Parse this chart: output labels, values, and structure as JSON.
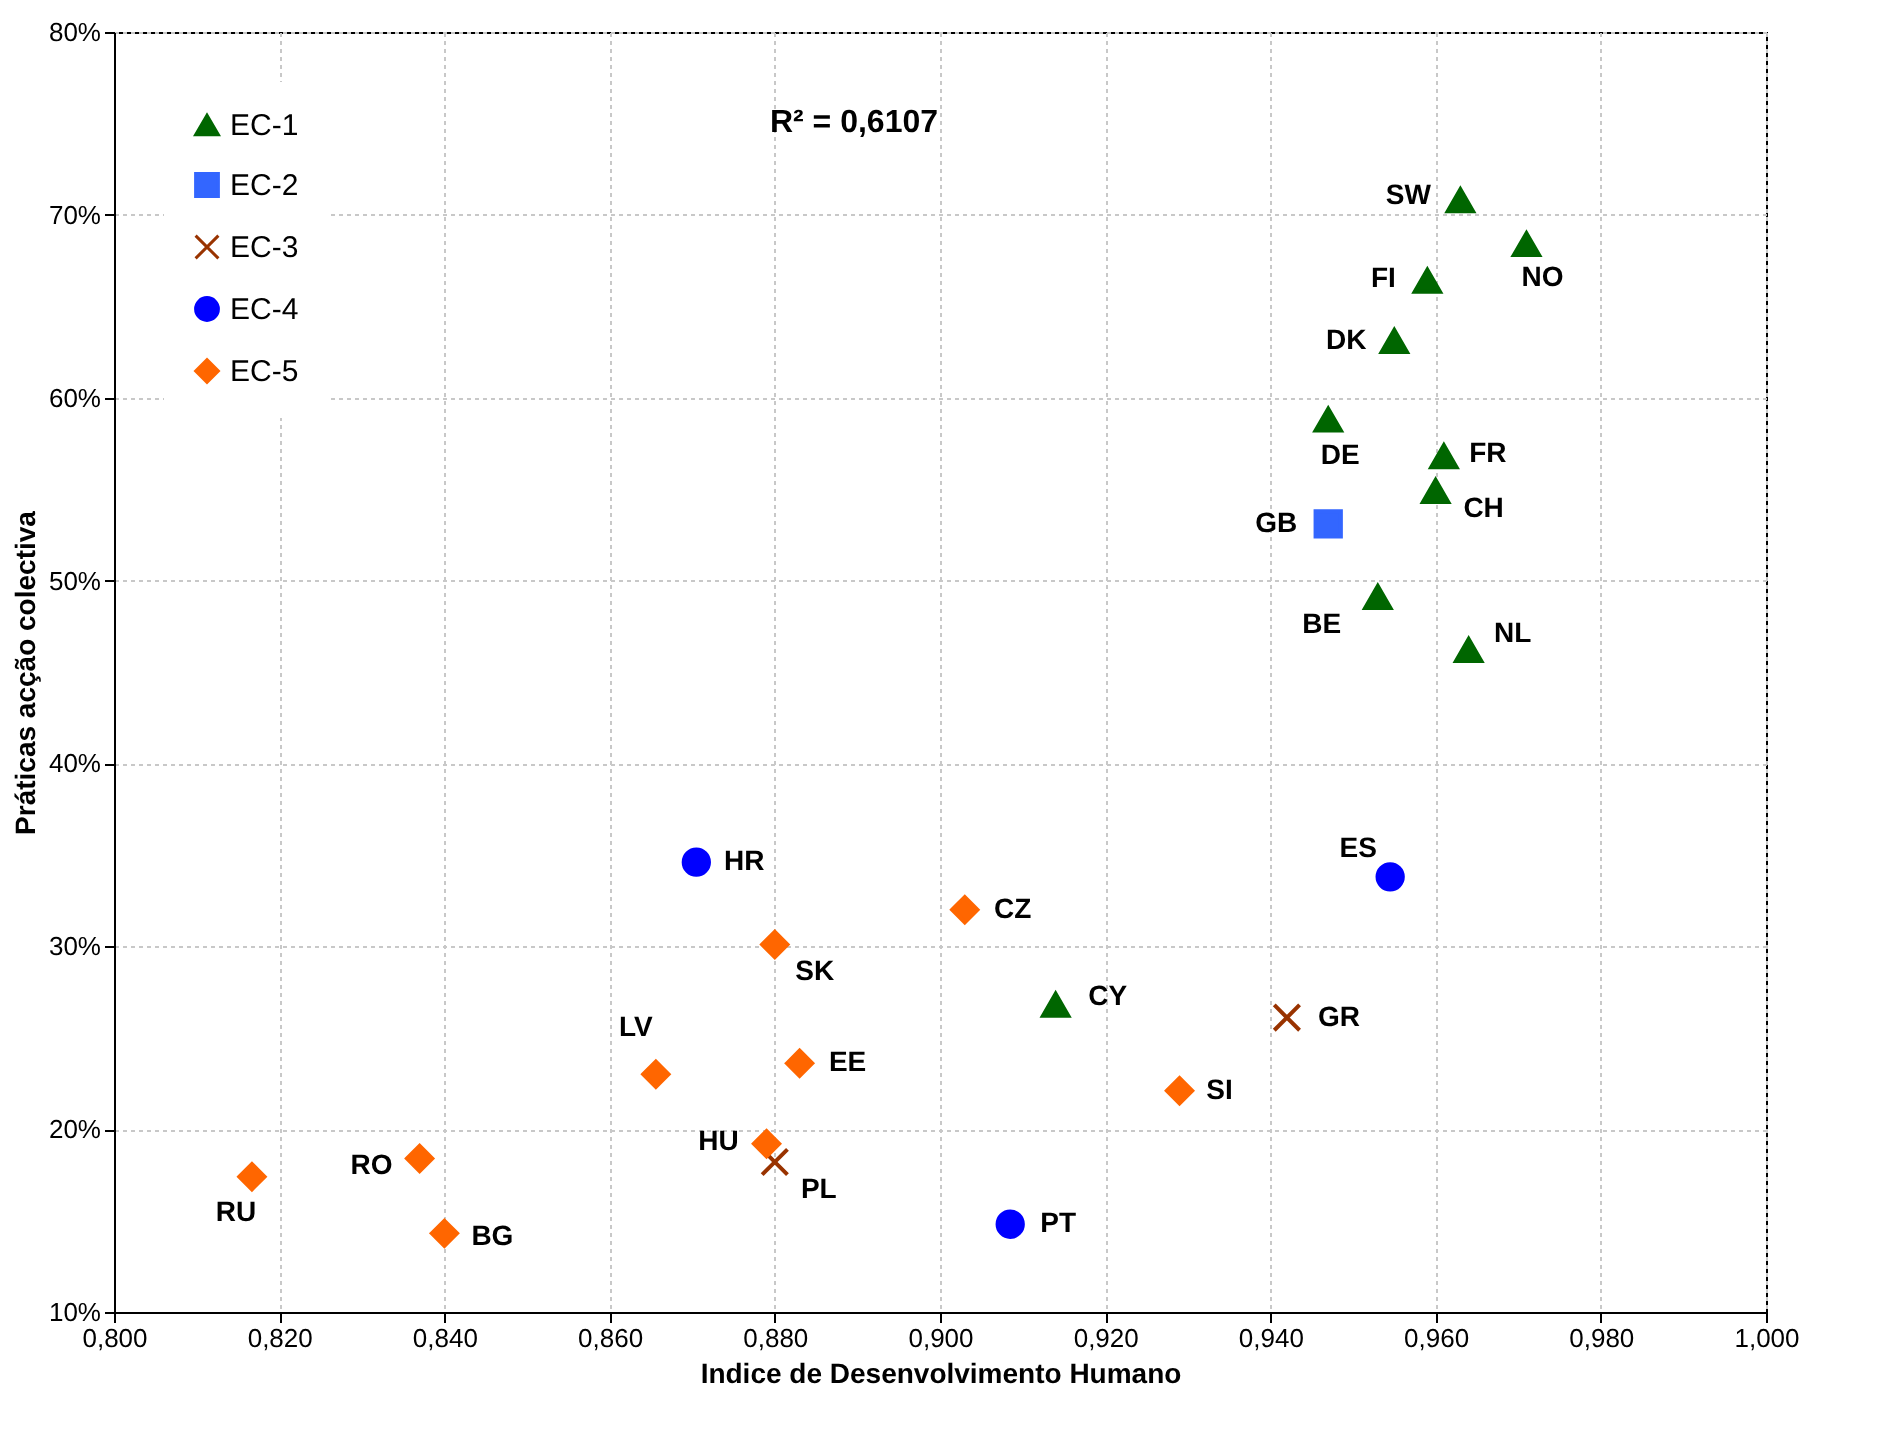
{
  "chart_data": {
    "type": "scatter",
    "xlabel": "Indice de Desenvolvimento Humano",
    "ylabel": "Práticas acção colectiva",
    "xlim": [
      0.8,
      1.0
    ],
    "ylim": [
      10,
      80
    ],
    "xticks": [
      {
        "value": 0.8,
        "label": "0,800"
      },
      {
        "value": 0.82,
        "label": "0,820"
      },
      {
        "value": 0.84,
        "label": "0,840"
      },
      {
        "value": 0.86,
        "label": "0,860"
      },
      {
        "value": 0.88,
        "label": "0,880"
      },
      {
        "value": 0.9,
        "label": "0,900"
      },
      {
        "value": 0.92,
        "label": "0,920"
      },
      {
        "value": 0.94,
        "label": "0,940"
      },
      {
        "value": 0.96,
        "label": "0,960"
      },
      {
        "value": 0.98,
        "label": "0,980"
      },
      {
        "value": 1.0,
        "label": "1,000"
      }
    ],
    "yticks": [
      {
        "value": 10,
        "label": "10%"
      },
      {
        "value": 20,
        "label": "20%"
      },
      {
        "value": 30,
        "label": "30%"
      },
      {
        "value": 40,
        "label": "40%"
      },
      {
        "value": 50,
        "label": "50%"
      },
      {
        "value": 60,
        "label": "60%"
      },
      {
        "value": 70,
        "label": "70%"
      },
      {
        "value": 80,
        "label": "80%"
      }
    ],
    "grid": true,
    "legend": "top left",
    "series": [
      {
        "name": "EC-1",
        "color": "#006600",
        "marker": "triangle",
        "x": [
          0.963,
          0.971,
          0.959,
          0.955,
          0.947,
          0.961,
          0.96,
          0.953,
          0.964,
          0.914
        ],
        "values": [
          70.8,
          68.4,
          66.4,
          63.1,
          58.8,
          56.8,
          54.9,
          49.1,
          46.2,
          26.8
        ]
      },
      {
        "name": "EC-2",
        "color": "#3366ff",
        "marker": "square",
        "x": [
          0.947
        ],
        "values": [
          53.1
        ]
      },
      {
        "name": "EC-3",
        "color": "#993300",
        "marker": "cross",
        "x": [
          0.942,
          0.88
        ],
        "values": [
          26.1,
          18.2
        ]
      },
      {
        "name": "EC-4",
        "color": "#0000ff",
        "marker": "circle",
        "x": [
          0.8705,
          0.9545,
          0.9085
        ],
        "values": [
          34.6,
          33.8,
          14.8
        ]
      },
      {
        "name": "EC-5",
        "color": "#ff6600",
        "marker": "diamond",
        "x": [
          0.903,
          0.88,
          0.8656,
          0.883,
          0.879,
          0.837,
          0.8167,
          0.84,
          0.929
        ],
        "values": [
          32.0,
          30.1,
          23.0,
          23.6,
          19.2,
          18.4,
          17.4,
          14.3,
          22.1
        ]
      }
    ],
    "annotations": [
      "R² = 0,6107",
      {
        "text": "SW",
        "x": 0.963,
        "y": 70.8
      },
      {
        "text": "NO",
        "x": 0.971,
        "y": 68.4
      },
      {
        "text": "FI",
        "x": 0.959,
        "y": 66.4
      },
      {
        "text": "DK",
        "x": 0.955,
        "y": 63.1
      },
      {
        "text": "DE",
        "x": 0.947,
        "y": 58.8
      },
      {
        "text": "FR",
        "x": 0.961,
        "y": 56.8
      },
      {
        "text": "CH",
        "x": 0.96,
        "y": 54.9
      },
      {
        "text": "BE",
        "x": 0.953,
        "y": 49.1
      },
      {
        "text": "NL",
        "x": 0.964,
        "y": 46.2
      },
      {
        "text": "CY",
        "x": 0.914,
        "y": 26.8
      },
      {
        "text": "GB",
        "x": 0.947,
        "y": 53.1
      },
      {
        "text": "GR",
        "x": 0.942,
        "y": 26.1
      },
      {
        "text": "PL",
        "x": 0.88,
        "y": 18.2
      },
      {
        "text": "HR",
        "x": 0.8705,
        "y": 34.6
      },
      {
        "text": "ES",
        "x": 0.9545,
        "y": 33.8
      },
      {
        "text": "PT",
        "x": 0.9085,
        "y": 14.8
      },
      {
        "text": "CZ",
        "x": 0.903,
        "y": 32.0
      },
      {
        "text": "SK",
        "x": 0.88,
        "y": 30.1
      },
      {
        "text": "LV",
        "x": 0.8656,
        "y": 23.0
      },
      {
        "text": "EE",
        "x": 0.883,
        "y": 23.6
      },
      {
        "text": "HU",
        "x": 0.879,
        "y": 19.2
      },
      {
        "text": "RO",
        "x": 0.837,
        "y": 18.4
      },
      {
        "text": "RU",
        "x": 0.8167,
        "y": 17.4
      },
      {
        "text": "BG",
        "x": 0.84,
        "y": 14.3
      },
      {
        "text": "SI",
        "x": 0.929,
        "y": 22.1
      }
    ]
  }
}
